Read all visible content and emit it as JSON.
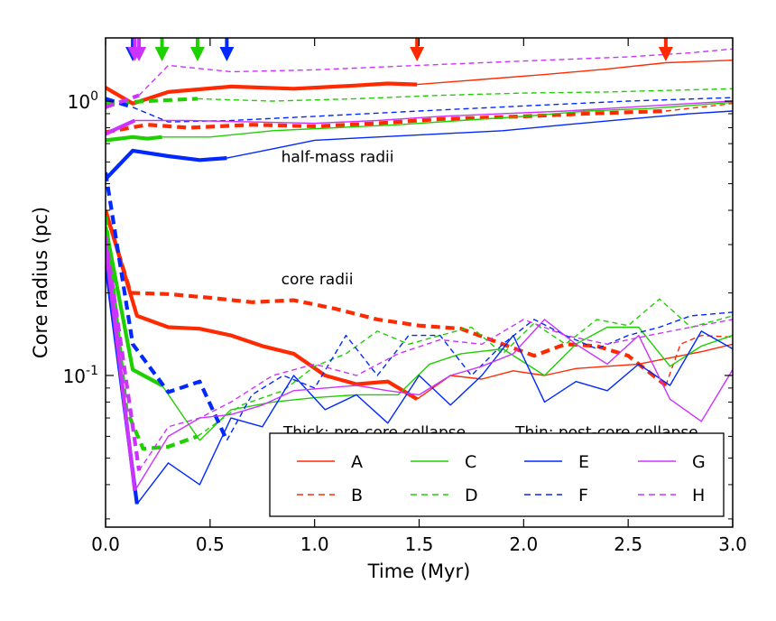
{
  "chart_data": {
    "type": "line",
    "xlabel": "Time (Myr)",
    "ylabel": "Core radius (pc)",
    "xlim": [
      0.0,
      3.0
    ],
    "ylim": [
      0.028,
      1.7
    ],
    "yscale": "log",
    "x_ticks": [
      0.0,
      0.5,
      1.0,
      1.5,
      2.0,
      2.5,
      3.0
    ],
    "x_tick_labels": [
      "0.0",
      "0.5",
      "1.0",
      "1.5",
      "2.0",
      "2.5",
      "3.0"
    ],
    "y_major_ticks": [
      0.1,
      1.0
    ],
    "y_tick_labels": [
      {
        "base": "10",
        "exp": "-1",
        "value": 0.1
      },
      {
        "base": "10",
        "exp": "0",
        "value": 1.0
      }
    ],
    "y_minor_ticks": [
      0.03,
      0.04,
      0.05,
      0.06,
      0.07,
      0.08,
      0.09,
      0.2,
      0.3,
      0.4,
      0.5,
      0.6,
      0.7,
      0.8,
      0.9
    ],
    "grid": false,
    "annotations": [
      {
        "name": "half-mass-label",
        "text": "half-mass radii",
        "x": 0.84,
        "y": 0.6
      },
      {
        "name": "core-label",
        "text": "core radii",
        "x": 0.84,
        "y": 0.215
      },
      {
        "name": "thick-note",
        "text": "Thick: pre-core collapse",
        "x": 0.85,
        "y": 0.0595
      },
      {
        "name": "thin-note",
        "text": "Thin: post-core collapse",
        "x": 1.96,
        "y": 0.0595
      }
    ],
    "collapse_arrows": [
      {
        "series": "A",
        "x": 1.49,
        "color": "#ff2a00"
      },
      {
        "series": "B",
        "x": 2.68,
        "color": "#ff2a00"
      },
      {
        "series": "C",
        "x": 0.27,
        "color": "#1fd000"
      },
      {
        "series": "D",
        "x": 0.44,
        "color": "#1fd000"
      },
      {
        "series": "E",
        "x": 0.58,
        "color": "#0028ff"
      },
      {
        "series": "F",
        "x": 0.13,
        "color": "#0028ff"
      },
      {
        "series": "G",
        "x": 0.14,
        "color": "#cc33ff"
      },
      {
        "series": "H",
        "x": 0.16,
        "color": "#cc33ff"
      }
    ],
    "legend": {
      "placement": "lower-right",
      "entries": [
        {
          "name": "A",
          "color": "#ff2a00",
          "dash": "solid"
        },
        {
          "name": "C",
          "color": "#1fd000",
          "dash": "solid"
        },
        {
          "name": "E",
          "color": "#0028ff",
          "dash": "solid"
        },
        {
          "name": "G",
          "color": "#cc33ff",
          "dash": "solid"
        },
        {
          "name": "B",
          "color": "#ff2a00",
          "dash": "dashed"
        },
        {
          "name": "D",
          "color": "#1fd000",
          "dash": "dashed"
        },
        {
          "name": "F",
          "color": "#0028ff",
          "dash": "dashed"
        },
        {
          "name": "H",
          "color": "#cc33ff",
          "dash": "dashed"
        }
      ]
    },
    "series": [
      {
        "name": "A",
        "kind": "half-mass",
        "phase": "pre",
        "color": "#ff2a00",
        "dash": "solid",
        "x": [
          0.0,
          0.13,
          0.3,
          0.6,
          0.9,
          1.2,
          1.35,
          1.49
        ],
        "y": [
          1.12,
          0.98,
          1.08,
          1.13,
          1.11,
          1.14,
          1.16,
          1.15
        ]
      },
      {
        "name": "A",
        "kind": "half-mass",
        "phase": "post",
        "color": "#ff2a00",
        "dash": "solid",
        "x": [
          1.49,
          1.8,
          2.1,
          2.4,
          2.68,
          3.0
        ],
        "y": [
          1.15,
          1.2,
          1.25,
          1.31,
          1.38,
          1.41
        ]
      },
      {
        "name": "B",
        "kind": "half-mass",
        "phase": "pre",
        "color": "#ff2a00",
        "dash": "dashed",
        "x": [
          0.0,
          0.2,
          0.4,
          0.7,
          1.0,
          1.3,
          1.6,
          2.0,
          2.3,
          2.68
        ],
        "y": [
          0.77,
          0.82,
          0.8,
          0.82,
          0.81,
          0.83,
          0.86,
          0.88,
          0.9,
          0.92
        ]
      },
      {
        "name": "B",
        "kind": "half-mass",
        "phase": "post",
        "color": "#ff2a00",
        "dash": "dashed",
        "x": [
          2.68,
          3.0
        ],
        "y": [
          0.92,
          0.98
        ]
      },
      {
        "name": "C",
        "kind": "half-mass",
        "phase": "pre",
        "color": "#1fd000",
        "dash": "solid",
        "x": [
          0.0,
          0.13,
          0.2,
          0.27
        ],
        "y": [
          0.72,
          0.74,
          0.73,
          0.74
        ]
      },
      {
        "name": "C",
        "kind": "half-mass",
        "phase": "post",
        "color": "#1fd000",
        "dash": "solid",
        "x": [
          0.27,
          0.5,
          0.8,
          1.1,
          1.4,
          1.7,
          2.0,
          2.3,
          2.6,
          3.0
        ],
        "y": [
          0.74,
          0.74,
          0.78,
          0.8,
          0.82,
          0.85,
          0.88,
          0.92,
          0.94,
          0.99
        ]
      },
      {
        "name": "D",
        "kind": "half-mass",
        "phase": "pre",
        "color": "#1fd000",
        "dash": "dashed",
        "x": [
          0.0,
          0.2,
          0.44
        ],
        "y": [
          0.98,
          1.0,
          1.02
        ]
      },
      {
        "name": "D",
        "kind": "half-mass",
        "phase": "post",
        "color": "#1fd000",
        "dash": "dashed",
        "x": [
          0.44,
          0.8,
          1.2,
          1.6,
          2.0,
          2.4,
          2.8,
          3.0
        ],
        "y": [
          1.02,
          1.0,
          1.02,
          1.05,
          1.07,
          1.08,
          1.1,
          1.11
        ]
      },
      {
        "name": "E",
        "kind": "half-mass",
        "phase": "pre",
        "color": "#0028ff",
        "dash": "solid",
        "x": [
          0.0,
          0.13,
          0.3,
          0.45,
          0.58
        ],
        "y": [
          0.52,
          0.66,
          0.63,
          0.61,
          0.62
        ]
      },
      {
        "name": "E",
        "kind": "half-mass",
        "phase": "post",
        "color": "#0028ff",
        "dash": "solid",
        "x": [
          0.58,
          0.8,
          1.0,
          1.3,
          1.6,
          1.9,
          2.2,
          2.5,
          2.8,
          3.0
        ],
        "y": [
          0.62,
          0.67,
          0.72,
          0.74,
          0.76,
          0.78,
          0.82,
          0.86,
          0.9,
          0.92
        ]
      },
      {
        "name": "F",
        "kind": "half-mass",
        "phase": "pre",
        "color": "#0028ff",
        "dash": "dashed",
        "x": [
          0.0,
          0.13
        ],
        "y": [
          1.02,
          0.95
        ]
      },
      {
        "name": "F",
        "kind": "half-mass",
        "phase": "post",
        "color": "#0028ff",
        "dash": "dashed",
        "x": [
          0.13,
          0.3,
          0.6,
          1.0,
          1.5,
          2.0,
          2.5,
          3.0
        ],
        "y": [
          0.95,
          0.84,
          0.85,
          0.88,
          0.92,
          0.96,
          1.0,
          1.03
        ]
      },
      {
        "name": "G",
        "kind": "half-mass",
        "phase": "pre",
        "color": "#cc33ff",
        "dash": "solid",
        "x": [
          0.0,
          0.14
        ],
        "y": [
          0.76,
          0.85
        ]
      },
      {
        "name": "G",
        "kind": "half-mass",
        "phase": "post",
        "color": "#cc33ff",
        "dash": "solid",
        "x": [
          0.14,
          0.4,
          0.7,
          1.0,
          1.3,
          1.6,
          1.9,
          2.2,
          2.5,
          2.8,
          3.0
        ],
        "y": [
          0.85,
          0.85,
          0.84,
          0.83,
          0.85,
          0.88,
          0.9,
          0.92,
          0.95,
          0.98,
          1.0
        ]
      },
      {
        "name": "H",
        "kind": "half-mass",
        "phase": "pre",
        "color": "#cc33ff",
        "dash": "dashed",
        "x": [
          0.0,
          0.16
        ],
        "y": [
          0.95,
          1.05
        ]
      },
      {
        "name": "H",
        "kind": "half-mass",
        "phase": "post",
        "color": "#cc33ff",
        "dash": "dashed",
        "x": [
          0.16,
          0.3,
          0.6,
          1.0,
          1.5,
          2.0,
          2.5,
          2.8,
          3.0
        ],
        "y": [
          1.05,
          1.35,
          1.28,
          1.3,
          1.35,
          1.4,
          1.45,
          1.5,
          1.55
        ]
      },
      {
        "name": "A",
        "kind": "core",
        "phase": "pre",
        "color": "#ff2a00",
        "dash": "solid",
        "x": [
          0.0,
          0.15,
          0.3,
          0.45,
          0.6,
          0.75,
          0.9,
          1.05,
          1.2,
          1.35,
          1.49
        ],
        "y": [
          0.4,
          0.165,
          0.15,
          0.148,
          0.14,
          0.128,
          0.12,
          0.1,
          0.093,
          0.095,
          0.082
        ]
      },
      {
        "name": "A",
        "kind": "core",
        "phase": "post",
        "color": "#ff2a00",
        "dash": "solid",
        "x": [
          1.49,
          1.65,
          1.8,
          1.95,
          2.1,
          2.25,
          2.4,
          2.55,
          2.7,
          2.85,
          3.0
        ],
        "y": [
          0.082,
          0.1,
          0.097,
          0.104,
          0.1,
          0.106,
          0.108,
          0.11,
          0.116,
          0.122,
          0.13
        ]
      },
      {
        "name": "B",
        "kind": "core",
        "phase": "pre",
        "color": "#ff2a00",
        "dash": "dashed",
        "x": [
          0.0,
          0.12,
          0.3,
          0.5,
          0.7,
          0.9,
          1.1,
          1.3,
          1.5,
          1.7,
          1.9,
          2.05,
          2.2,
          2.35,
          2.5,
          2.68
        ],
        "y": [
          0.4,
          0.2,
          0.198,
          0.192,
          0.185,
          0.188,
          0.175,
          0.16,
          0.152,
          0.148,
          0.13,
          0.118,
          0.13,
          0.128,
          0.118,
          0.092
        ]
      },
      {
        "name": "B",
        "kind": "core",
        "phase": "post",
        "color": "#ff2a00",
        "dash": "dashed",
        "x": [
          2.68,
          2.75,
          2.85,
          3.0
        ],
        "y": [
          0.092,
          0.13,
          0.14,
          0.138
        ]
      },
      {
        "name": "C",
        "kind": "core",
        "phase": "pre",
        "color": "#1fd000",
        "dash": "solid",
        "x": [
          0.0,
          0.13,
          0.27
        ],
        "y": [
          0.35,
          0.105,
          0.092
        ]
      },
      {
        "name": "C",
        "kind": "core",
        "phase": "post",
        "color": "#1fd000",
        "dash": "solid",
        "x": [
          0.27,
          0.45,
          0.6,
          0.8,
          1.0,
          1.2,
          1.4,
          1.55,
          1.7,
          1.9,
          2.1,
          2.25,
          2.4,
          2.55,
          2.7,
          2.85,
          3.0
        ],
        "y": [
          0.092,
          0.058,
          0.075,
          0.08,
          0.083,
          0.085,
          0.085,
          0.11,
          0.12,
          0.125,
          0.1,
          0.13,
          0.15,
          0.15,
          0.108,
          0.128,
          0.14
        ]
      },
      {
        "name": "D",
        "kind": "core",
        "phase": "pre",
        "color": "#1fd000",
        "dash": "dashed",
        "x": [
          0.0,
          0.1,
          0.18,
          0.3,
          0.44
        ],
        "y": [
          0.38,
          0.075,
          0.054,
          0.055,
          0.06
        ]
      },
      {
        "name": "D",
        "kind": "core",
        "phase": "post",
        "color": "#1fd000",
        "dash": "dashed",
        "x": [
          0.44,
          0.65,
          0.85,
          1.0,
          1.15,
          1.3,
          1.45,
          1.6,
          1.75,
          1.9,
          2.05,
          2.2,
          2.35,
          2.5,
          2.65,
          2.8,
          3.0
        ],
        "y": [
          0.06,
          0.078,
          0.088,
          0.108,
          0.12,
          0.145,
          0.13,
          0.14,
          0.15,
          0.12,
          0.155,
          0.13,
          0.16,
          0.152,
          0.19,
          0.15,
          0.165
        ]
      },
      {
        "name": "E",
        "kind": "core",
        "phase": "pre",
        "color": "#0028ff",
        "dash": "solid",
        "x": [
          0.0,
          0.15
        ],
        "y": [
          0.26,
          0.034
        ]
      },
      {
        "name": "E",
        "kind": "core",
        "phase": "post",
        "color": "#0028ff",
        "dash": "solid",
        "x": [
          0.15,
          0.3,
          0.45,
          0.6,
          0.75,
          0.9,
          1.05,
          1.2,
          1.35,
          1.5,
          1.65,
          1.8,
          1.95,
          2.1,
          2.25,
          2.4,
          2.55,
          2.7,
          2.85,
          3.0
        ],
        "y": [
          0.034,
          0.048,
          0.04,
          0.07,
          0.065,
          0.1,
          0.075,
          0.085,
          0.067,
          0.1,
          0.078,
          0.1,
          0.14,
          0.08,
          0.095,
          0.088,
          0.11,
          0.092,
          0.145,
          0.125
        ]
      },
      {
        "name": "F",
        "kind": "core",
        "phase": "pre",
        "color": "#0028ff",
        "dash": "dashed",
        "x": [
          0.0,
          0.13,
          0.3,
          0.45,
          0.58
        ],
        "y": [
          0.55,
          0.13,
          0.087,
          0.095,
          0.058
        ]
      },
      {
        "name": "F",
        "kind": "core",
        "phase": "post",
        "color": "#0028ff",
        "dash": "dashed",
        "x": [
          0.58,
          0.7,
          0.85,
          1.0,
          1.15,
          1.3,
          1.45,
          1.6,
          1.75,
          1.9,
          2.05,
          2.2,
          2.35,
          2.5,
          2.65,
          2.8,
          3.0
        ],
        "y": [
          0.058,
          0.085,
          0.1,
          0.09,
          0.14,
          0.1,
          0.14,
          0.14,
          0.1,
          0.13,
          0.16,
          0.14,
          0.125,
          0.14,
          0.15,
          0.165,
          0.17
        ]
      },
      {
        "name": "G",
        "kind": "core",
        "phase": "pre",
        "color": "#cc33ff",
        "dash": "solid",
        "x": [
          0.0,
          0.14
        ],
        "y": [
          0.3,
          0.038
        ]
      },
      {
        "name": "G",
        "kind": "core",
        "phase": "post",
        "color": "#cc33ff",
        "dash": "solid",
        "x": [
          0.14,
          0.3,
          0.45,
          0.6,
          0.75,
          0.9,
          1.05,
          1.2,
          1.35,
          1.5,
          1.65,
          1.8,
          1.95,
          2.1,
          2.25,
          2.4,
          2.55,
          2.7,
          2.85,
          3.0
        ],
        "y": [
          0.038,
          0.06,
          0.07,
          0.072,
          0.078,
          0.088,
          0.09,
          0.092,
          0.088,
          0.085,
          0.1,
          0.108,
          0.12,
          0.16,
          0.13,
          0.11,
          0.14,
          0.082,
          0.068,
          0.105
        ]
      },
      {
        "name": "H",
        "kind": "core",
        "phase": "pre",
        "color": "#cc33ff",
        "dash": "dashed",
        "x": [
          0.0,
          0.16
        ],
        "y": [
          0.32,
          0.045
        ]
      },
      {
        "name": "H",
        "kind": "core",
        "phase": "post",
        "color": "#cc33ff",
        "dash": "dashed",
        "x": [
          0.16,
          0.3,
          0.45,
          0.6,
          0.8,
          1.0,
          1.2,
          1.4,
          1.6,
          1.8,
          2.0,
          2.2,
          2.4,
          2.6,
          2.8,
          3.0
        ],
        "y": [
          0.045,
          0.065,
          0.07,
          0.08,
          0.1,
          0.11,
          0.1,
          0.12,
          0.135,
          0.13,
          0.16,
          0.14,
          0.13,
          0.14,
          0.15,
          0.16
        ]
      }
    ]
  }
}
